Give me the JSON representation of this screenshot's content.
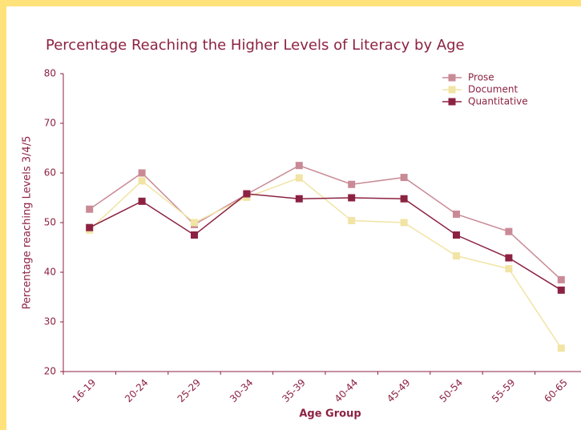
{
  "chart_data": {
    "type": "line",
    "title": "Percentage Reaching the Higher Levels of Literacy by Age",
    "x_label": "Age Group",
    "y_label": "Percentage reaching Levels 3/4/5",
    "categories": [
      "16-19",
      "20-24",
      "25-29",
      "30-34",
      "35-39",
      "40-44",
      "45-49",
      "50-54",
      "55-59",
      "60-65"
    ],
    "series": [
      {
        "name": "Prose",
        "color": "#c98a96",
        "values": [
          52.7,
          60,
          49.6,
          55.7,
          61.5,
          57.7,
          59.1,
          51.7,
          48.2,
          38.5
        ]
      },
      {
        "name": "Document",
        "color": "#f1e4a4",
        "values": [
          48.5,
          58.4,
          50,
          55.1,
          59,
          50.4,
          50,
          43.3,
          40.7,
          24.7
        ]
      },
      {
        "name": "Quantitative",
        "color": "#8c2242",
        "values": [
          49,
          54.3,
          47.5,
          55.8,
          54.8,
          55,
          54.8,
          47.5,
          42.9,
          36.4
        ]
      }
    ],
    "ylim": [
      20,
      80
    ],
    "yticks": [
      20,
      30,
      40,
      50,
      60,
      70,
      80
    ],
    "legend": "upper right"
  }
}
